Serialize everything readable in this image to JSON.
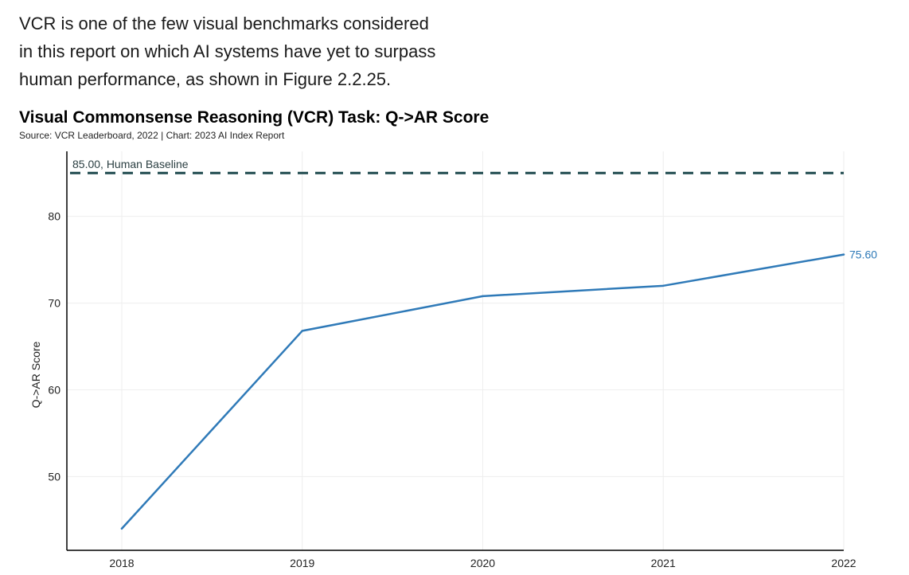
{
  "intro": {
    "lines": [
      "VCR is one of the few visual benchmarks considered",
      "in this report on which AI systems have yet to surpass",
      "human performance, as shown in Figure 2.2.25."
    ]
  },
  "colors": {
    "series": "#2f7ab8",
    "baseline": "#1f4a4f",
    "grid": "#eeeeee",
    "axis": "#000000"
  },
  "chart_data": {
    "type": "line",
    "title": "Visual Commonsense Reasoning (VCR) Task: Q->AR Score",
    "source": "Source: VCR Leaderboard, 2022 | Chart: 2023 AI Index Report",
    "xlabel": "",
    "ylabel": "Q->AR Score",
    "categories": [
      "2018",
      "2019",
      "2020",
      "2021",
      "2022"
    ],
    "series": [
      {
        "name": "Q->AR Score",
        "values": [
          44.0,
          66.8,
          70.8,
          72.0,
          75.6
        ]
      }
    ],
    "end_label": "75.60",
    "yticks": [
      50,
      60,
      70,
      80
    ],
    "ylim": [
      41.5,
      87.5
    ],
    "grid": true,
    "baseline": {
      "value": 85.0,
      "label": "85.00, Human Baseline"
    }
  }
}
